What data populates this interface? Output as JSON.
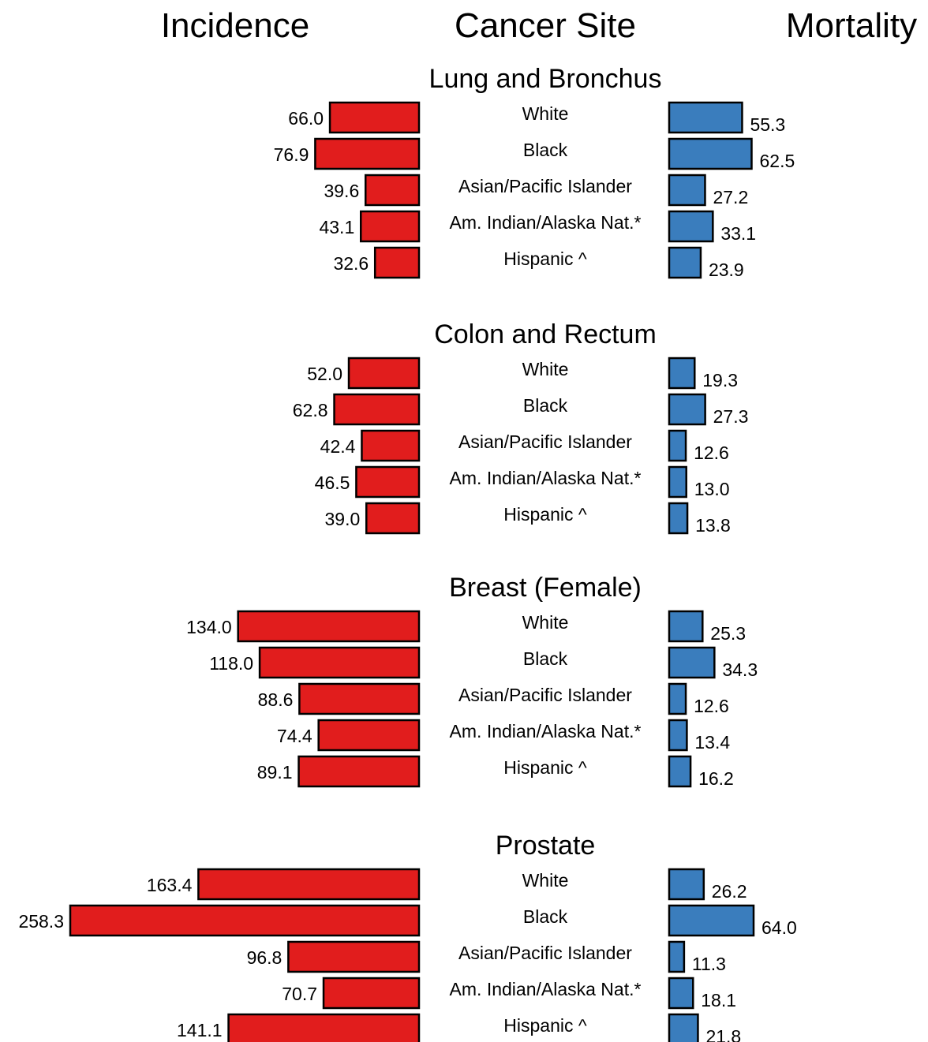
{
  "headers": {
    "left": "Incidence",
    "center": "Cancer Site",
    "right": "Mortality"
  },
  "colors": {
    "incidence": "#e11d1d",
    "mortality": "#3a7dbd"
  },
  "chart_data": {
    "type": "bar",
    "orientation": "horizontal-butterfly",
    "categories": [
      "White",
      "Black",
      "Asian/Pacific Islander",
      "Am. Indian/Alaska Nat.*",
      "Hispanic ^"
    ],
    "sections": [
      {
        "title": "Lung and Bronchus",
        "series": [
          {
            "name": "Incidence",
            "values": [
              66.0,
              76.9,
              39.6,
              43.1,
              32.6
            ]
          },
          {
            "name": "Mortality",
            "values": [
              55.3,
              62.5,
              27.2,
              33.1,
              23.9
            ]
          }
        ]
      },
      {
        "title": "Colon and Rectum",
        "series": [
          {
            "name": "Incidence",
            "values": [
              52.0,
              62.8,
              42.4,
              46.5,
              39.0
            ]
          },
          {
            "name": "Mortality",
            "values": [
              19.3,
              27.3,
              12.6,
              13.0,
              13.8
            ]
          }
        ]
      },
      {
        "title": "Breast (Female)",
        "series": [
          {
            "name": "Incidence",
            "values": [
              134.0,
              118.0,
              88.6,
              74.4,
              89.1
            ]
          },
          {
            "name": "Mortality",
            "values": [
              25.3,
              34.3,
              12.6,
              13.4,
              16.2
            ]
          }
        ]
      },
      {
        "title": "Prostate",
        "series": [
          {
            "name": "Incidence",
            "values": [
              163.4,
              258.3,
              96.8,
              70.7,
              141.1
            ]
          },
          {
            "name": "Mortality",
            "values": [
              26.2,
              64.0,
              11.3,
              18.1,
              21.8
            ]
          }
        ]
      }
    ]
  }
}
